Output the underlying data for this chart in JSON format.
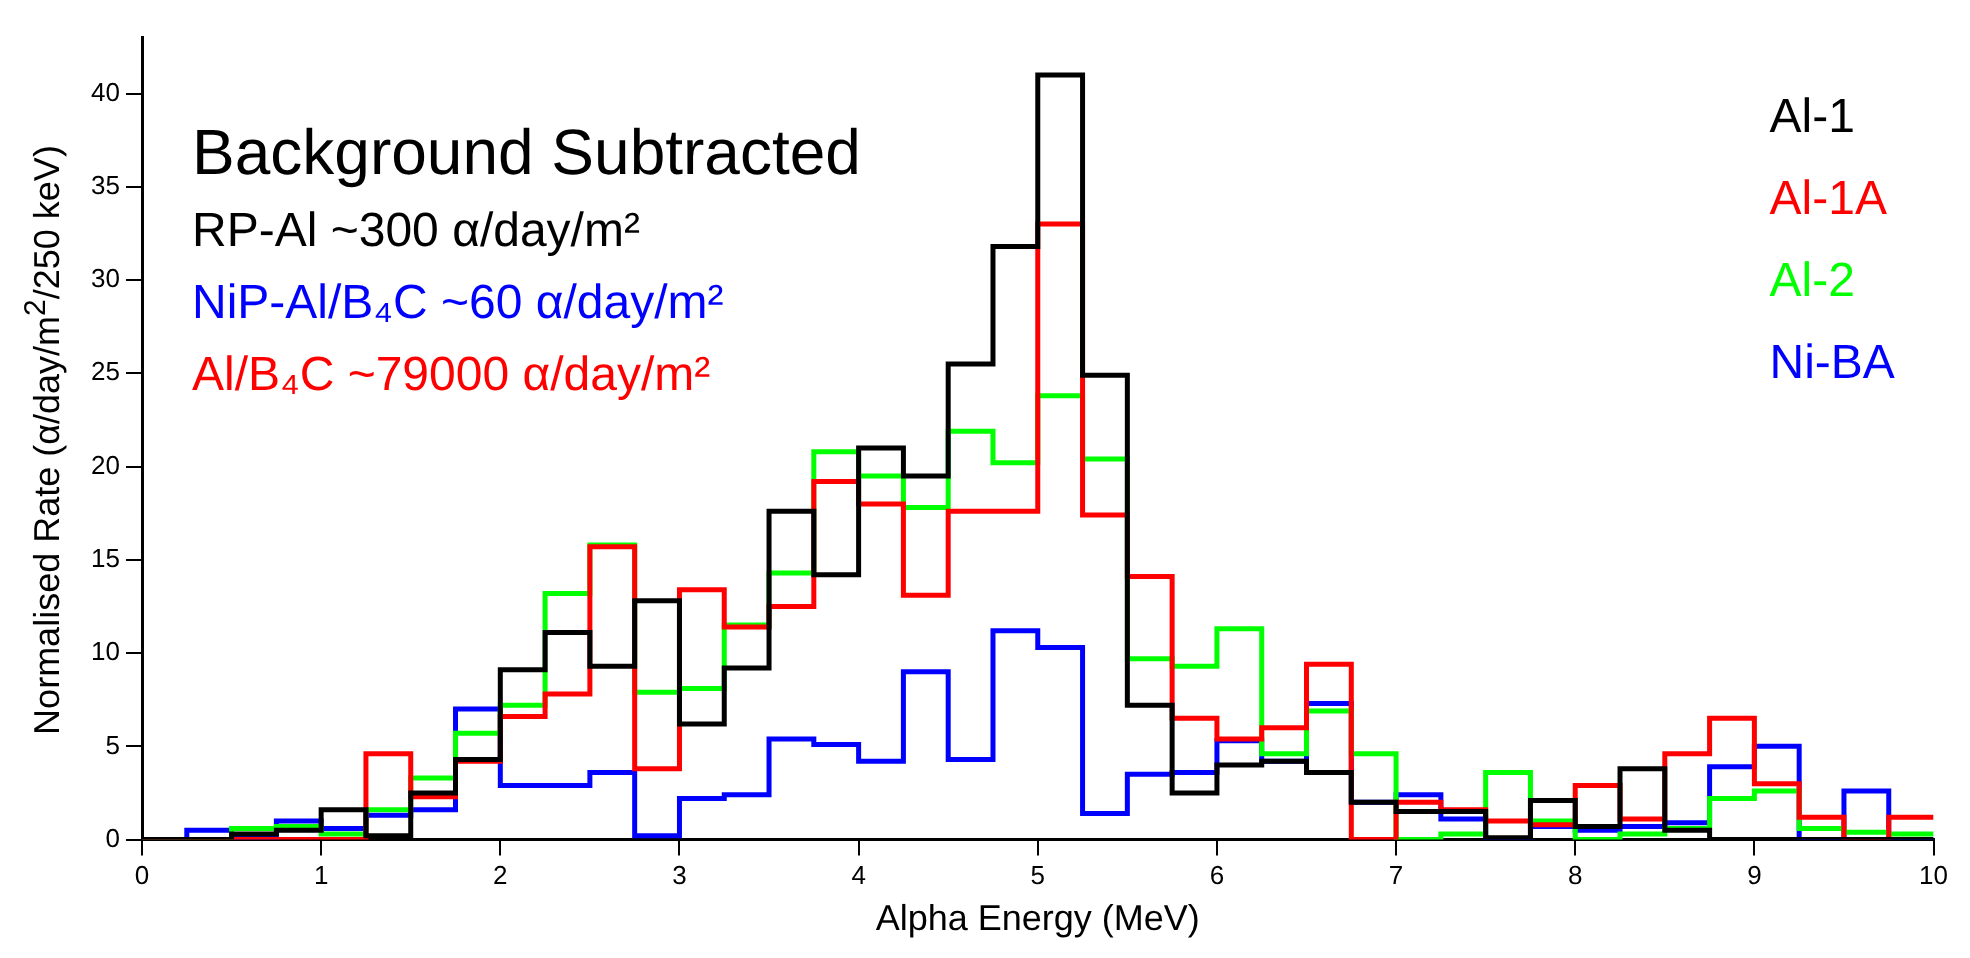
{
  "chart_data": {
    "type": "histogram",
    "xlabel": "Alpha Energy (MeV)",
    "ylabel": "Normalised Rate (α/day/m$^{2}$/250 keV)",
    "bins": [
      0,
      0.25,
      0.5,
      0.75,
      1,
      1.25,
      1.5,
      1.75,
      2,
      2.25,
      2.5,
      2.75,
      3,
      3.25,
      3.5,
      3.75,
      4,
      4.25,
      4.5,
      4.75,
      5,
      5.25,
      5.5,
      5.75,
      6,
      6.25,
      6.5,
      6.75,
      7,
      7.25,
      7.5,
      7.75,
      8,
      8.25,
      8.5,
      8.75,
      9,
      9.25,
      9.5,
      9.75,
      10
    ],
    "series": [
      {
        "name": "Al-1",
        "color": "#000000",
        "values": [
          0,
          0,
          0.3,
          0.5,
          1.6,
          0.2,
          2.5,
          4.3,
          9.1,
          11.1,
          9.3,
          12.8,
          6.2,
          9.2,
          17.6,
          14.2,
          21.0,
          19.5,
          25.5,
          31.8,
          41.0,
          24.9,
          7.2,
          2.5,
          4.0,
          4.2,
          3.6,
          2.0,
          1.5,
          1.5,
          0.1,
          2.1,
          0.7,
          3.8,
          0.5,
          0,
          0,
          0,
          0,
          0
        ]
      },
      {
        "name": "Al-1A",
        "color": "#ff0000",
        "values": [
          0,
          0,
          0,
          0,
          0,
          4.6,
          2.3,
          4.2,
          6.6,
          7.8,
          15.7,
          3.8,
          13.4,
          11.4,
          12.5,
          19.2,
          18.0,
          13.1,
          17.6,
          17.6,
          33.0,
          17.4,
          14.1,
          6.5,
          5.4,
          6.0,
          9.4,
          0,
          2.0,
          1.6,
          1.0,
          0.8,
          2.9,
          1.1,
          4.6,
          6.5,
          3.0,
          1.2,
          0,
          1.2
        ]
      },
      {
        "name": "Al-2",
        "color": "#00ff00",
        "values": [
          0,
          0,
          0.6,
          0.7,
          0.3,
          1.6,
          3.3,
          5.7,
          7.2,
          13.2,
          15.8,
          7.9,
          8.1,
          11.5,
          14.3,
          20.8,
          19.5,
          17.8,
          21.9,
          20.2,
          23.8,
          20.4,
          9.7,
          9.3,
          11.3,
          4.6,
          6.9,
          4.6,
          0,
          0.3,
          3.6,
          1.0,
          0,
          0.3,
          0.6,
          2.2,
          2.6,
          0.6,
          0.4,
          0.3
        ]
      },
      {
        "name": "Ni-BA",
        "color": "#0000ff",
        "values": [
          0,
          0.5,
          0.1,
          1.0,
          0.6,
          1.3,
          1.6,
          7.0,
          2.9,
          2.9,
          3.6,
          0.2,
          2.2,
          2.4,
          5.4,
          5.1,
          4.2,
          9.0,
          4.3,
          11.2,
          10.3,
          1.4,
          3.5,
          3.6,
          5.3,
          4.2,
          7.3,
          2.0,
          2.4,
          1.1,
          0,
          0.7,
          0.5,
          0.7,
          0.9,
          3.9,
          5.0,
          0,
          2.6,
          0
        ]
      }
    ],
    "xlim": [
      0,
      10
    ],
    "xticks": [
      0,
      1,
      2,
      3,
      4,
      5,
      6,
      7,
      8,
      9,
      10
    ],
    "ylim": [
      0,
      43
    ],
    "yticks": [
      0,
      5,
      10,
      15,
      20,
      25,
      30,
      35,
      40
    ],
    "grid": false,
    "legend": "top right",
    "annotations": [
      "Background Subtracted",
      "RP-Al ~300 α/day/m²",
      "NiP-Al/B₄C ~60 α/day/m²",
      "Al/B₄C ~79000 α/day/m²"
    ]
  }
}
